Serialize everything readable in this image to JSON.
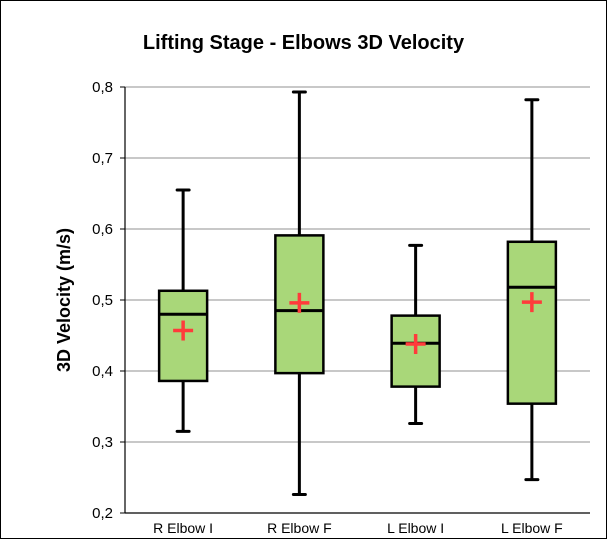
{
  "chart_data": {
    "type": "box",
    "title": "Lifting Stage - Elbows 3D Velocity",
    "xlabel": "",
    "ylabel": "3D Velocity (m/s)",
    "ylim": [
      0.2,
      0.8
    ],
    "ytick_labels": [
      "0,2",
      "0,3",
      "0,4",
      "0,5",
      "0,6",
      "0,7",
      "0,8"
    ],
    "yticks": [
      0.2,
      0.3,
      0.4,
      0.5,
      0.6,
      0.7,
      0.8
    ],
    "grid": true,
    "categories": [
      "R Elbow I",
      "R Elbow F",
      "L Elbow I",
      "L Elbow F"
    ],
    "boxes": [
      {
        "category": "R Elbow I",
        "min": 0.315,
        "q1": 0.386,
        "median": 0.48,
        "q3": 0.513,
        "max": 0.655,
        "mean": 0.457
      },
      {
        "category": "R Elbow F",
        "min": 0.226,
        "q1": 0.397,
        "median": 0.485,
        "q3": 0.591,
        "max": 0.793,
        "mean": 0.496
      },
      {
        "category": "L Elbow I",
        "min": 0.326,
        "q1": 0.378,
        "median": 0.439,
        "q3": 0.478,
        "max": 0.577,
        "mean": 0.438
      },
      {
        "category": "L Elbow F",
        "min": 0.247,
        "q1": 0.354,
        "median": 0.518,
        "q3": 0.582,
        "max": 0.782,
        "mean": 0.497
      }
    ]
  },
  "colors": {
    "box_fill": "#a9d779",
    "box_stroke": "#000000",
    "mean_marker": "#ff3b3b",
    "grid": "#a6a6a6"
  }
}
